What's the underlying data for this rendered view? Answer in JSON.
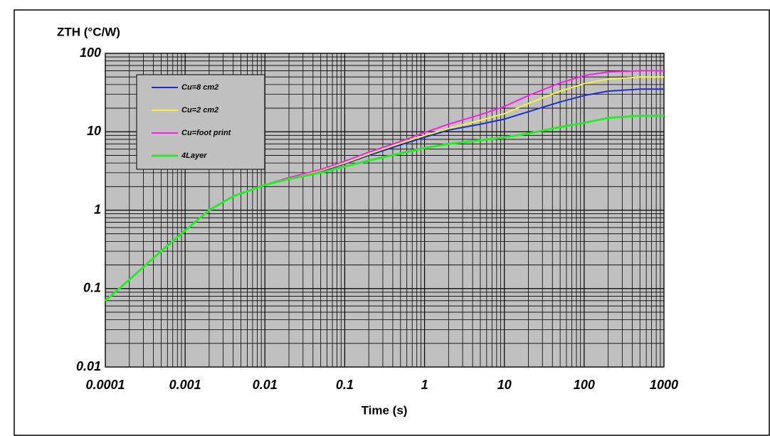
{
  "chart_data": {
    "type": "line",
    "y_label": "ZTH (°C/W)",
    "x_label": "Time (s)",
    "log_x": true,
    "log_y": true,
    "grid": true,
    "minor_grid": true,
    "legend": "upper left",
    "xlim": [
      0.0001,
      1000
    ],
    "ylim": [
      0.01,
      100
    ],
    "xticks": [
      0.0001,
      0.001,
      0.01,
      0.1,
      1,
      10,
      100,
      1000
    ],
    "yticks": [
      0.01,
      0.1,
      1,
      10,
      100
    ],
    "x": [
      0.0001,
      0.0002,
      0.0005,
      0.001,
      0.002,
      0.004,
      0.01,
      0.02,
      0.05,
      0.1,
      0.2,
      0.5,
      1,
      2,
      5,
      10,
      20,
      50,
      100,
      200,
      500,
      1000
    ],
    "series": [
      {
        "name": "Cu=8 cm2",
        "color": "#1c2fd6",
        "values": [
          0.07,
          0.13,
          0.3,
          0.55,
          1.0,
          1.5,
          2.1,
          2.6,
          3.1,
          3.9,
          5.0,
          6.8,
          8.5,
          10.5,
          12.5,
          14.5,
          18,
          24,
          29,
          33,
          35,
          35
        ]
      },
      {
        "name": "Cu=2 cm2",
        "color": "#f4f43c",
        "values": [
          0.07,
          0.13,
          0.3,
          0.55,
          1.0,
          1.5,
          2.1,
          2.6,
          3.2,
          4.0,
          5.2,
          7.2,
          9,
          11,
          14,
          17,
          23,
          33,
          41,
          47,
          50,
          50
        ]
      },
      {
        "name": "Cu=foot print",
        "color": "#ff1cf0",
        "values": [
          0.07,
          0.13,
          0.3,
          0.55,
          1.0,
          1.5,
          2.1,
          2.6,
          3.3,
          4.2,
          5.5,
          7.5,
          9.8,
          12.5,
          16.5,
          21,
          29,
          42,
          52,
          58,
          60,
          60
        ]
      },
      {
        "name": "4Layer",
        "color": "#22ee22",
        "values": [
          0.07,
          0.13,
          0.3,
          0.55,
          1.0,
          1.5,
          2.1,
          2.5,
          3.0,
          3.6,
          4.3,
          5.3,
          6.2,
          7.0,
          7.8,
          8.5,
          9.5,
          11.5,
          13,
          15,
          16,
          16
        ]
      }
    ]
  }
}
